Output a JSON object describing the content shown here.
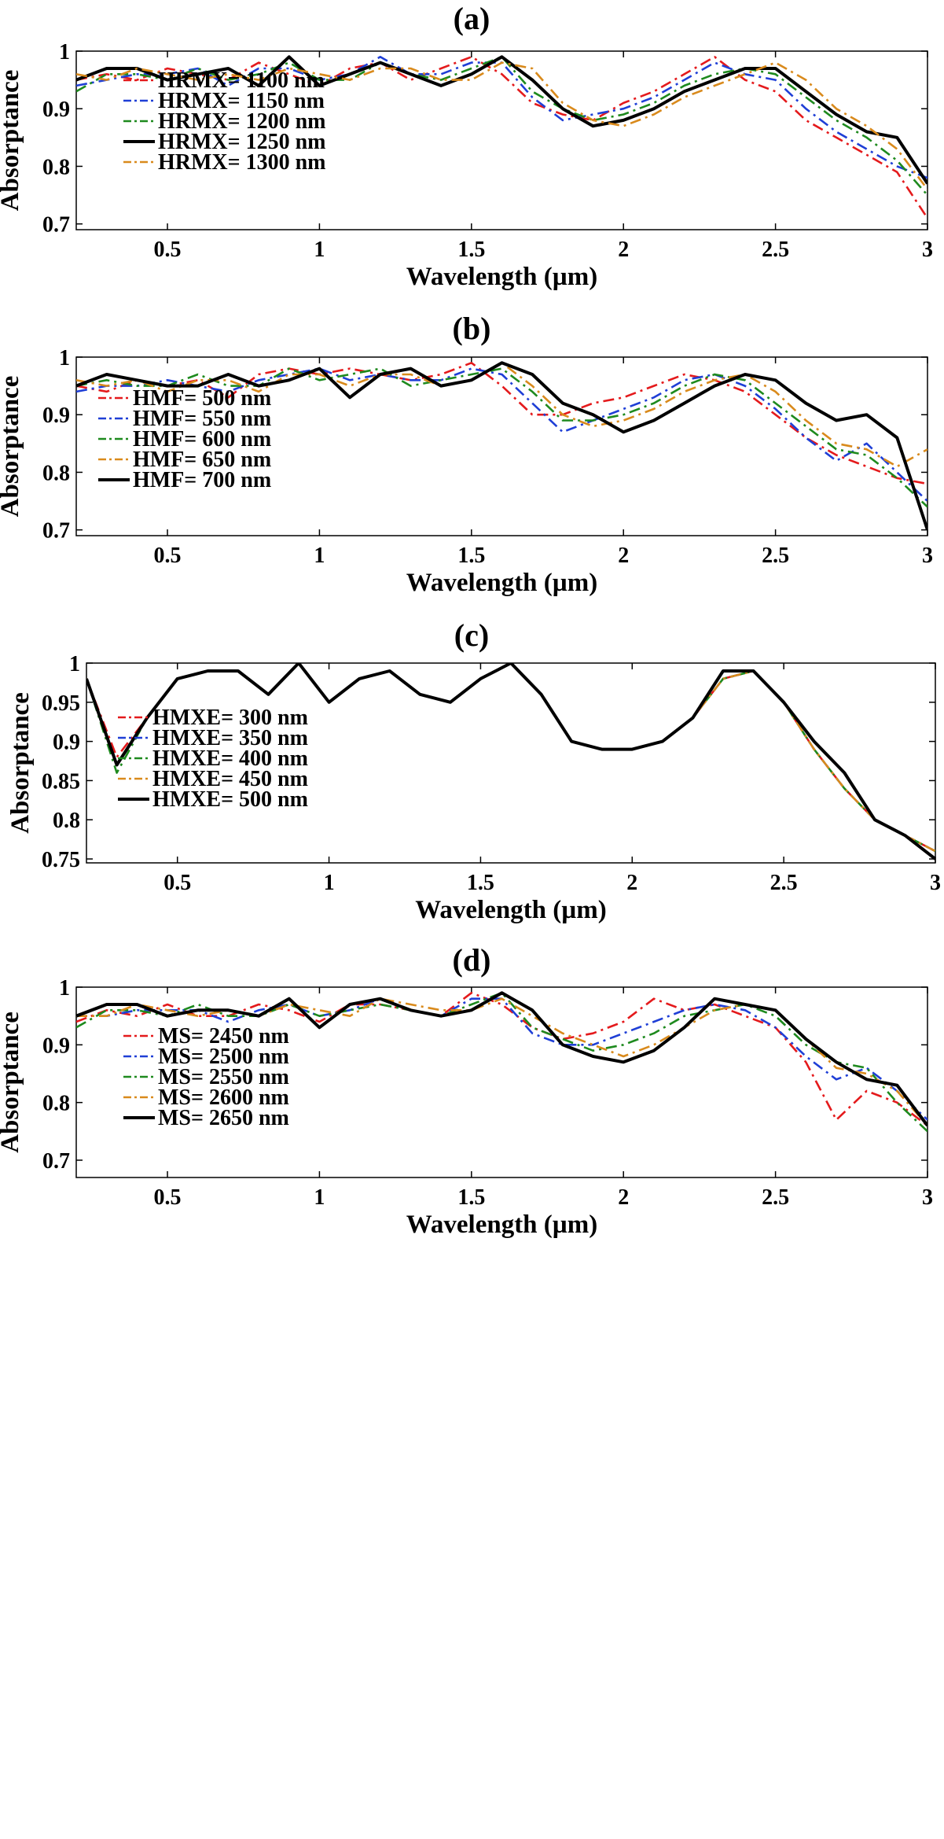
{
  "figure": {
    "panels": [
      "(a)",
      "(b)",
      "(c)",
      "(d)"
    ]
  },
  "chart_data": [
    {
      "type": "line",
      "title": "(a)",
      "xlabel": "Wavelength (µm)",
      "ylabel": "Absorptance",
      "xlim": [
        0.2,
        3.0
      ],
      "ylim": [
        0.69,
        1.0
      ],
      "xticks": [
        0.5,
        1,
        1.5,
        2,
        2.5,
        3
      ],
      "xtick_labels": [
        "0.5",
        "1",
        "1.5",
        "2",
        "2.5",
        "3"
      ],
      "yticks": [
        0.7,
        0.8,
        0.9,
        1
      ],
      "ytick_labels": [
        "0.7",
        "0.8",
        "0.9",
        "1"
      ],
      "legend_position": "lower-left",
      "x": [
        0.2,
        0.3,
        0.4,
        0.5,
        0.6,
        0.7,
        0.8,
        0.9,
        1.0,
        1.1,
        1.2,
        1.3,
        1.4,
        1.5,
        1.6,
        1.7,
        1.8,
        1.9,
        2.0,
        2.1,
        2.2,
        2.3,
        2.4,
        2.5,
        2.6,
        2.7,
        2.8,
        2.9,
        3.0
      ],
      "series": [
        {
          "name": "HRMX= 1100 nm",
          "color": "#e41a1c",
          "dash": "dashdot",
          "values": [
            0.95,
            0.96,
            0.95,
            0.97,
            0.96,
            0.95,
            0.98,
            0.96,
            0.94,
            0.97,
            0.98,
            0.95,
            0.97,
            0.99,
            0.96,
            0.91,
            0.89,
            0.88,
            0.91,
            0.93,
            0.96,
            0.99,
            0.95,
            0.93,
            0.88,
            0.85,
            0.82,
            0.79,
            0.71
          ]
        },
        {
          "name": "HRMX= 1150 nm",
          "color": "#1f3fd6",
          "dash": "dashdot",
          "values": [
            0.94,
            0.95,
            0.96,
            0.96,
            0.97,
            0.94,
            0.97,
            0.97,
            0.95,
            0.96,
            0.99,
            0.96,
            0.96,
            0.98,
            0.98,
            0.92,
            0.88,
            0.89,
            0.9,
            0.92,
            0.95,
            0.98,
            0.96,
            0.95,
            0.9,
            0.86,
            0.83,
            0.8,
            0.78
          ]
        },
        {
          "name": "HRMX= 1200 nm",
          "color": "#1e8a1e",
          "dash": "dashdot",
          "values": [
            0.93,
            0.96,
            0.96,
            0.95,
            0.97,
            0.95,
            0.96,
            0.98,
            0.95,
            0.95,
            0.98,
            0.96,
            0.95,
            0.97,
            0.99,
            0.93,
            0.9,
            0.88,
            0.89,
            0.91,
            0.94,
            0.96,
            0.97,
            0.96,
            0.92,
            0.88,
            0.85,
            0.81,
            0.75
          ]
        },
        {
          "name": "HRMX= 1250 nm",
          "color": "#000000",
          "dash": "solid",
          "values": [
            0.95,
            0.97,
            0.97,
            0.95,
            0.96,
            0.97,
            0.94,
            0.99,
            0.94,
            0.96,
            0.98,
            0.96,
            0.94,
            0.96,
            0.99,
            0.95,
            0.9,
            0.87,
            0.88,
            0.9,
            0.93,
            0.95,
            0.97,
            0.97,
            0.93,
            0.89,
            0.86,
            0.85,
            0.77
          ]
        },
        {
          "name": "HRMX= 1300 nm",
          "color": "#d98a1c",
          "dash": "dashdot",
          "values": [
            0.96,
            0.95,
            0.97,
            0.96,
            0.95,
            0.96,
            0.95,
            0.97,
            0.96,
            0.95,
            0.97,
            0.97,
            0.95,
            0.95,
            0.98,
            0.97,
            0.91,
            0.88,
            0.87,
            0.89,
            0.92,
            0.94,
            0.96,
            0.98,
            0.95,
            0.9,
            0.87,
            0.83,
            0.76
          ]
        }
      ]
    },
    {
      "type": "line",
      "title": "(b)",
      "xlabel": "Wavelength (µm)",
      "ylabel": "Absorptance",
      "xlim": [
        0.2,
        3.0
      ],
      "ylim": [
        0.69,
        1.0
      ],
      "xticks": [
        0.5,
        1,
        1.5,
        2,
        2.5,
        3
      ],
      "xtick_labels": [
        "0.5",
        "1",
        "1.5",
        "2",
        "2.5",
        "3"
      ],
      "yticks": [
        0.7,
        0.8,
        0.9,
        1
      ],
      "ytick_labels": [
        "0.7",
        "0.8",
        "0.9",
        "1"
      ],
      "legend_position": "lower-left",
      "x": [
        0.2,
        0.3,
        0.4,
        0.5,
        0.6,
        0.7,
        0.8,
        0.9,
        1.0,
        1.1,
        1.2,
        1.3,
        1.4,
        1.5,
        1.6,
        1.7,
        1.8,
        1.9,
        2.0,
        2.1,
        2.2,
        2.3,
        2.4,
        2.5,
        2.6,
        2.7,
        2.8,
        2.9,
        3.0
      ],
      "series": [
        {
          "name": "HMF= 500 nm",
          "color": "#e41a1c",
          "dash": "dashdot",
          "values": [
            0.95,
            0.94,
            0.96,
            0.95,
            0.96,
            0.93,
            0.97,
            0.98,
            0.97,
            0.98,
            0.97,
            0.96,
            0.97,
            0.99,
            0.95,
            0.9,
            0.9,
            0.92,
            0.93,
            0.95,
            0.97,
            0.96,
            0.94,
            0.9,
            0.86,
            0.83,
            0.81,
            0.79,
            0.78
          ]
        },
        {
          "name": "HMF= 550 nm",
          "color": "#1f3fd6",
          "dash": "dashdot",
          "values": [
            0.94,
            0.95,
            0.95,
            0.96,
            0.95,
            0.94,
            0.96,
            0.97,
            0.98,
            0.96,
            0.97,
            0.96,
            0.96,
            0.98,
            0.97,
            0.92,
            0.87,
            0.89,
            0.91,
            0.93,
            0.96,
            0.97,
            0.95,
            0.91,
            0.86,
            0.82,
            0.85,
            0.8,
            0.75
          ]
        },
        {
          "name": "HMF= 600 nm",
          "color": "#1e8a1e",
          "dash": "dashdot",
          "values": [
            0.95,
            0.96,
            0.95,
            0.95,
            0.97,
            0.95,
            0.95,
            0.98,
            0.96,
            0.97,
            0.98,
            0.95,
            0.96,
            0.97,
            0.98,
            0.94,
            0.89,
            0.89,
            0.9,
            0.92,
            0.95,
            0.97,
            0.96,
            0.92,
            0.88,
            0.84,
            0.83,
            0.79,
            0.74
          ]
        },
        {
          "name": "HMF= 650 nm",
          "color": "#d98a1c",
          "dash": "dashdot",
          "values": [
            0.96,
            0.95,
            0.96,
            0.94,
            0.96,
            0.96,
            0.94,
            0.97,
            0.97,
            0.95,
            0.97,
            0.97,
            0.95,
            0.96,
            0.99,
            0.95,
            0.9,
            0.88,
            0.89,
            0.91,
            0.94,
            0.96,
            0.97,
            0.94,
            0.89,
            0.85,
            0.84,
            0.81,
            0.84
          ]
        },
        {
          "name": "HMF= 700 nm",
          "color": "#000000",
          "dash": "solid",
          "values": [
            0.95,
            0.97,
            0.96,
            0.95,
            0.95,
            0.97,
            0.95,
            0.96,
            0.98,
            0.93,
            0.97,
            0.98,
            0.95,
            0.96,
            0.99,
            0.97,
            0.92,
            0.9,
            0.87,
            0.89,
            0.92,
            0.95,
            0.97,
            0.96,
            0.92,
            0.89,
            0.9,
            0.86,
            0.7
          ]
        }
      ]
    },
    {
      "type": "line",
      "title": "(c)",
      "xlabel": "Wavelength (µm)",
      "ylabel": "Absorptance",
      "xlim": [
        0.2,
        3.0
      ],
      "ylim": [
        0.745,
        1.0
      ],
      "xticks": [
        0.5,
        1,
        1.5,
        2,
        2.5,
        3
      ],
      "xtick_labels": [
        "0.5",
        "1",
        "1.5",
        "2",
        "2.5",
        "3"
      ],
      "yticks": [
        0.75,
        0.8,
        0.85,
        0.9,
        0.95,
        1
      ],
      "ytick_labels": [
        "0.75",
        "0.8",
        "0.85",
        "0.9",
        "0.95",
        "1"
      ],
      "legend_position": "lower-left",
      "x": [
        0.2,
        0.3,
        0.4,
        0.5,
        0.6,
        0.7,
        0.8,
        0.9,
        1.0,
        1.1,
        1.2,
        1.3,
        1.4,
        1.5,
        1.6,
        1.7,
        1.8,
        1.9,
        2.0,
        2.1,
        2.2,
        2.3,
        2.4,
        2.5,
        2.6,
        2.7,
        2.8,
        2.9,
        3.0
      ],
      "series": [
        {
          "name": "HMXE= 300 nm",
          "color": "#e41a1c",
          "dash": "dashdot",
          "values": [
            0.98,
            0.88,
            0.93,
            0.98,
            0.99,
            0.99,
            0.96,
            1.0,
            0.95,
            0.98,
            0.99,
            0.96,
            0.95,
            0.98,
            1.0,
            0.96,
            0.9,
            0.89,
            0.89,
            0.9,
            0.93,
            0.98,
            0.99,
            0.95,
            0.89,
            0.84,
            0.8,
            0.78,
            0.76
          ]
        },
        {
          "name": "HMXE= 350 nm",
          "color": "#1f3fd6",
          "dash": "dashdot",
          "values": [
            0.98,
            0.87,
            0.93,
            0.98,
            0.99,
            0.99,
            0.96,
            1.0,
            0.95,
            0.98,
            0.99,
            0.96,
            0.95,
            0.98,
            1.0,
            0.96,
            0.9,
            0.89,
            0.89,
            0.9,
            0.93,
            0.98,
            0.99,
            0.95,
            0.89,
            0.84,
            0.8,
            0.78,
            0.76
          ]
        },
        {
          "name": "HMXE= 400 nm",
          "color": "#1e8a1e",
          "dash": "dashdot",
          "values": [
            0.98,
            0.86,
            0.93,
            0.98,
            0.99,
            0.99,
            0.96,
            1.0,
            0.95,
            0.98,
            0.99,
            0.96,
            0.95,
            0.98,
            1.0,
            0.96,
            0.9,
            0.89,
            0.89,
            0.9,
            0.93,
            0.98,
            0.99,
            0.95,
            0.89,
            0.84,
            0.8,
            0.78,
            0.76
          ]
        },
        {
          "name": "HMXE= 450 nm",
          "color": "#d98a1c",
          "dash": "dashdot",
          "values": [
            0.98,
            0.87,
            0.93,
            0.98,
            0.99,
            0.99,
            0.96,
            1.0,
            0.95,
            0.98,
            0.99,
            0.96,
            0.95,
            0.98,
            1.0,
            0.96,
            0.9,
            0.89,
            0.89,
            0.9,
            0.93,
            0.98,
            0.99,
            0.95,
            0.89,
            0.84,
            0.8,
            0.78,
            0.76
          ]
        },
        {
          "name": "HMXE= 500 nm",
          "color": "#000000",
          "dash": "solid",
          "values": [
            0.98,
            0.87,
            0.93,
            0.98,
            0.99,
            0.99,
            0.96,
            1.0,
            0.95,
            0.98,
            0.99,
            0.96,
            0.95,
            0.98,
            1.0,
            0.96,
            0.9,
            0.89,
            0.89,
            0.9,
            0.93,
            0.99,
            0.99,
            0.95,
            0.9,
            0.86,
            0.8,
            0.78,
            0.75
          ]
        }
      ]
    },
    {
      "type": "line",
      "title": "(d)",
      "xlabel": "Wavelength (µm)",
      "ylabel": "Absorptance",
      "xlim": [
        0.2,
        3.0
      ],
      "ylim": [
        0.67,
        1.0
      ],
      "xticks": [
        0.5,
        1,
        1.5,
        2,
        2.5,
        3
      ],
      "xtick_labels": [
        "0.5",
        "1",
        "1.5",
        "2",
        "2.5",
        "3"
      ],
      "yticks": [
        0.7,
        0.8,
        0.9,
        1
      ],
      "ytick_labels": [
        "0.7",
        "0.8",
        "0.9",
        "1"
      ],
      "legend_position": "lower-left",
      "x": [
        0.2,
        0.3,
        0.4,
        0.5,
        0.6,
        0.7,
        0.8,
        0.9,
        1.0,
        1.1,
        1.2,
        1.3,
        1.4,
        1.5,
        1.6,
        1.7,
        1.8,
        1.9,
        2.0,
        2.1,
        2.2,
        2.3,
        2.4,
        2.5,
        2.6,
        2.7,
        2.8,
        2.9,
        3.0
      ],
      "series": [
        {
          "name": "MS= 2450 nm",
          "color": "#e41a1c",
          "dash": "dashdot",
          "values": [
            0.94,
            0.96,
            0.95,
            0.97,
            0.95,
            0.95,
            0.97,
            0.96,
            0.94,
            0.97,
            0.97,
            0.96,
            0.95,
            0.99,
            0.97,
            0.93,
            0.91,
            0.92,
            0.94,
            0.98,
            0.96,
            0.97,
            0.95,
            0.93,
            0.87,
            0.77,
            0.82,
            0.8,
            0.76
          ]
        },
        {
          "name": "MS= 2500 nm",
          "color": "#1f3fd6",
          "dash": "dashdot",
          "values": [
            0.95,
            0.95,
            0.96,
            0.96,
            0.96,
            0.94,
            0.96,
            0.97,
            0.95,
            0.96,
            0.98,
            0.96,
            0.95,
            0.98,
            0.98,
            0.92,
            0.9,
            0.9,
            0.92,
            0.94,
            0.96,
            0.97,
            0.96,
            0.93,
            0.88,
            0.84,
            0.86,
            0.82,
            0.77
          ]
        },
        {
          "name": "MS= 2550 nm",
          "color": "#1e8a1e",
          "dash": "dashdot",
          "values": [
            0.93,
            0.96,
            0.96,
            0.95,
            0.97,
            0.95,
            0.95,
            0.97,
            0.95,
            0.96,
            0.97,
            0.96,
            0.95,
            0.97,
            0.99,
            0.93,
            0.91,
            0.89,
            0.9,
            0.92,
            0.95,
            0.96,
            0.97,
            0.95,
            0.9,
            0.87,
            0.86,
            0.8,
            0.75
          ]
        },
        {
          "name": "MS= 2600 nm",
          "color": "#d98a1c",
          "dash": "dashdot",
          "values": [
            0.95,
            0.95,
            0.97,
            0.96,
            0.95,
            0.96,
            0.95,
            0.97,
            0.96,
            0.95,
            0.98,
            0.97,
            0.96,
            0.96,
            0.98,
            0.95,
            0.92,
            0.9,
            0.88,
            0.9,
            0.93,
            0.96,
            0.97,
            0.96,
            0.91,
            0.86,
            0.85,
            0.82,
            0.76
          ]
        },
        {
          "name": "MS= 2650 nm",
          "color": "#000000",
          "dash": "solid",
          "values": [
            0.95,
            0.97,
            0.97,
            0.95,
            0.96,
            0.96,
            0.95,
            0.98,
            0.93,
            0.97,
            0.98,
            0.96,
            0.95,
            0.96,
            0.99,
            0.96,
            0.9,
            0.88,
            0.87,
            0.89,
            0.93,
            0.98,
            0.97,
            0.96,
            0.91,
            0.87,
            0.84,
            0.83,
            0.76
          ]
        }
      ]
    }
  ]
}
